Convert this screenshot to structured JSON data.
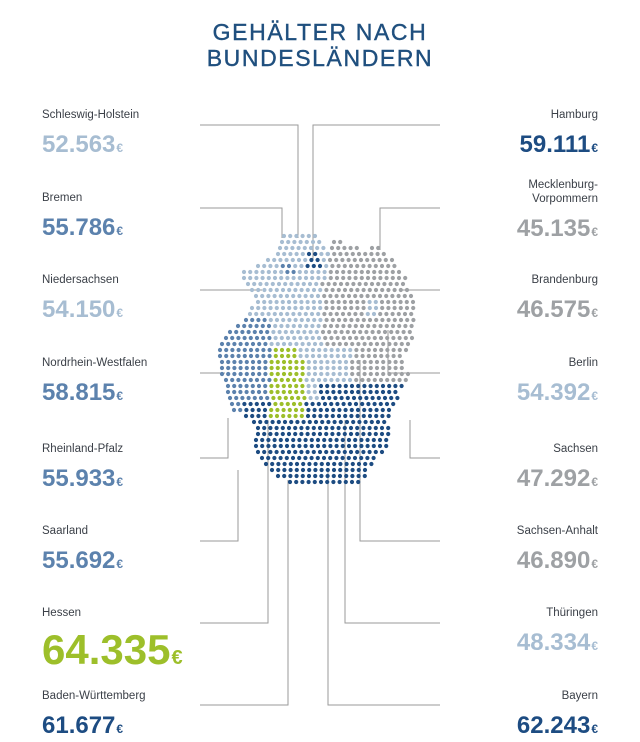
{
  "title_line1": "GEHÄLTER NACH",
  "title_line2": "BUNDESLÄNDERN",
  "currency": "€",
  "colors": {
    "hessen": "#9dbf2a",
    "dark_navy": "#1d4c82",
    "mid_blue": "#5c82ad",
    "light_blue": "#a7bdd2",
    "grey": "#9ea1a4",
    "line": "#9a9a9a"
  },
  "chart_data": {
    "type": "map",
    "unit": "€",
    "states": [
      {
        "key": "sh",
        "name": "Schleswig-Holstein",
        "value": "52.563",
        "num": 52563,
        "side": "left",
        "color": "light_blue"
      },
      {
        "key": "hb",
        "name": "Bremen",
        "value": "55.786",
        "num": 55786,
        "side": "left",
        "color": "mid_blue"
      },
      {
        "key": "ni",
        "name": "Niedersachsen",
        "value": "54.150",
        "num": 54150,
        "side": "left",
        "color": "light_blue"
      },
      {
        "key": "nw",
        "name": "Nordrhein-Westfalen",
        "value": "58.815",
        "num": 58815,
        "side": "left",
        "color": "mid_blue"
      },
      {
        "key": "rp",
        "name": "Rheinland-Pfalz",
        "value": "55.933",
        "num": 55933,
        "side": "left",
        "color": "mid_blue"
      },
      {
        "key": "sl",
        "name": "Saarland",
        "value": "55.692",
        "num": 55692,
        "side": "left",
        "color": "mid_blue"
      },
      {
        "key": "he",
        "name": "Hessen",
        "value": "64.335",
        "num": 64335,
        "side": "left",
        "color": "hessen"
      },
      {
        "key": "bw",
        "name": "Baden-Württemberg",
        "value": "61.677",
        "num": 61677,
        "side": "left",
        "color": "dark_navy"
      },
      {
        "key": "hh",
        "name": "Hamburg",
        "value": "59.111",
        "num": 59111,
        "side": "right",
        "color": "dark_navy"
      },
      {
        "key": "mv",
        "name": "Mecklenburg-\nVorpommern",
        "value": "45.135",
        "num": 45135,
        "side": "right",
        "color": "grey"
      },
      {
        "key": "bb",
        "name": "Brandenburg",
        "value": "46.575",
        "num": 46575,
        "side": "right",
        "color": "grey"
      },
      {
        "key": "be",
        "name": "Berlin",
        "value": "54.392",
        "num": 54392,
        "side": "right",
        "color": "light_blue"
      },
      {
        "key": "sn",
        "name": "Sachsen",
        "value": "47.292",
        "num": 47292,
        "side": "right",
        "color": "grey"
      },
      {
        "key": "st",
        "name": "Sachsen-Anhalt",
        "value": "46.890",
        "num": 46890,
        "side": "right",
        "color": "grey"
      },
      {
        "key": "th",
        "name": "Thüringen",
        "value": "48.334",
        "num": 48334,
        "side": "right",
        "color": "light_blue"
      },
      {
        "key": "by",
        "name": "Bayern",
        "value": "62.243",
        "num": 62243,
        "side": "right",
        "color": "dark_navy"
      }
    ]
  }
}
